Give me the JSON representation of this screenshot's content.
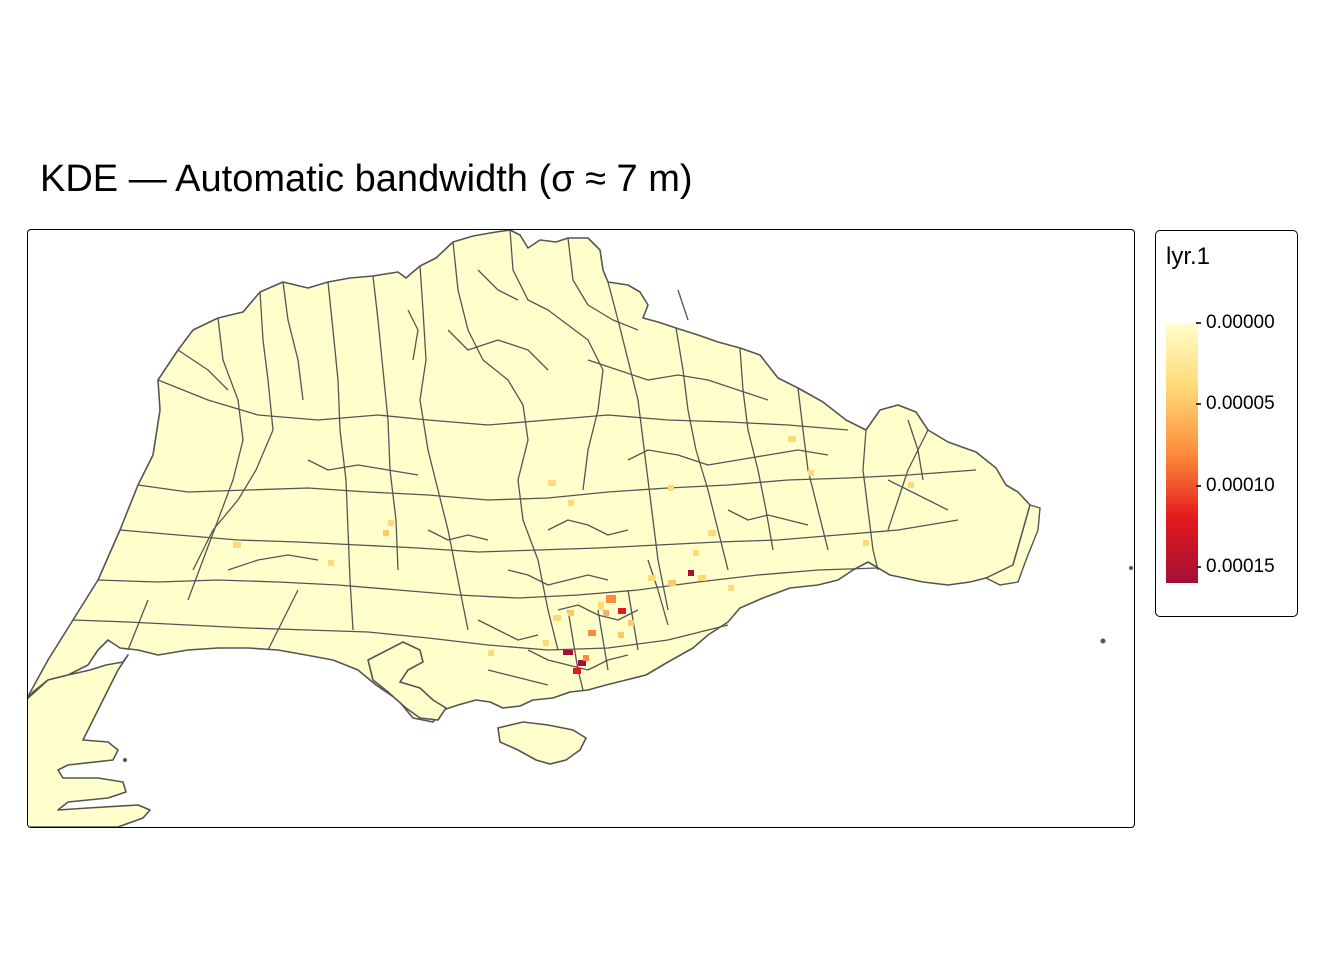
{
  "title": "KDE — Automatic bandwidth (σ ≈ 7 m)",
  "legend": {
    "title": "lyr.1",
    "ticks": [
      {
        "value": 0.0,
        "label": "0.00000"
      },
      {
        "value": 5e-05,
        "label": "0.00005"
      },
      {
        "value": 0.0001,
        "label": "0.00010"
      },
      {
        "value": 0.00015,
        "label": "0.00015"
      }
    ],
    "range": [
      0,
      0.00016
    ],
    "colors": [
      "#ffffcc",
      "#fed976",
      "#fd8d3c",
      "#e31a1c",
      "#a50f35"
    ]
  },
  "map": {
    "land_color": "#ffffcc",
    "boundary_color": "#555555",
    "background": "#ffffff"
  }
}
